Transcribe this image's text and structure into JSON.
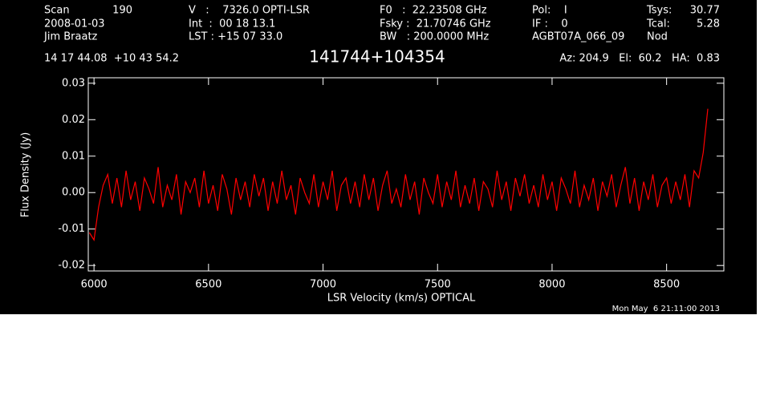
{
  "header": {
    "scan_label": "Scan",
    "scan": "190",
    "date": "2008-01-03",
    "observer": "Jim Braatz",
    "velocity": "V   :    7326.0 OPTI-LSR",
    "int": "Int  :  00 18 13.1",
    "lst": "LST : +15 07 33.0",
    "f0": "F0   :  22.23508 GHz",
    "fsky": "Fsky :  21.70746 GHz",
    "bw": "BW   : 200.0000 MHz",
    "pol": "Pol:    I",
    "if": "IF :    0",
    "project": "AGBT07A_066_09",
    "tsys_label": "Tsys:",
    "tsys": "30.77",
    "tcal_label": "Tcal:",
    "tcal": "5.28",
    "mode": "Nod",
    "coords": "14 17 44.08  +10 43 54.2",
    "pointing": "Az: 204.9   El:  60.2   HA:  0.83",
    "timestamp": "Mon May  6 21:11:00 2013"
  },
  "chart_data": {
    "type": "line",
    "title": "141744+104354",
    "x_label": "LSR Velocity (km/s) OPTICAL",
    "y_label": "Flux Density (Jy)",
    "xlim": [
      5975,
      8750
    ],
    "ylim": [
      -0.0215,
      0.0315
    ],
    "xticks": [
      6000,
      6500,
      7000,
      7500,
      8000,
      8500
    ],
    "yticks": [
      -0.02,
      -0.01,
      {
        "value": 0,
        "label": "0.00"
      },
      0.01,
      0.02,
      0.03
    ],
    "grid": false,
    "series": [
      {
        "color": "#ff0000",
        "x": [
          5980,
          6000,
          6020,
          6040,
          6060,
          6080,
          6100,
          6120,
          6140,
          6160,
          6180,
          6200,
          6220,
          6240,
          6260,
          6280,
          6300,
          6320,
          6340,
          6360,
          6380,
          6400,
          6420,
          6440,
          6460,
          6480,
          6500,
          6520,
          6540,
          6560,
          6580,
          6600,
          6620,
          6640,
          6660,
          6680,
          6700,
          6720,
          6740,
          6760,
          6780,
          6800,
          6820,
          6840,
          6860,
          6880,
          6900,
          6920,
          6940,
          6960,
          6980,
          7000,
          7020,
          7040,
          7060,
          7080,
          7100,
          7120,
          7140,
          7160,
          7180,
          7200,
          7220,
          7240,
          7260,
          7280,
          7300,
          7320,
          7340,
          7360,
          7380,
          7400,
          7420,
          7440,
          7460,
          7480,
          7500,
          7520,
          7540,
          7560,
          7580,
          7600,
          7620,
          7640,
          7660,
          7680,
          7700,
          7720,
          7740,
          7760,
          7780,
          7800,
          7820,
          7840,
          7860,
          7880,
          7900,
          7920,
          7940,
          7960,
          7980,
          8000,
          8020,
          8040,
          8060,
          8080,
          8100,
          8120,
          8140,
          8160,
          8180,
          8200,
          8220,
          8240,
          8260,
          8280,
          8300,
          8320,
          8340,
          8360,
          8380,
          8400,
          8420,
          8440,
          8460,
          8480,
          8500,
          8520,
          8540,
          8560,
          8580,
          8600,
          8620,
          8640,
          8660,
          8680
        ],
        "values": [
          -0.011,
          -0.013,
          -0.004,
          0.002,
          0.005,
          -0.003,
          0.004,
          -0.004,
          0.006,
          -0.002,
          0.003,
          -0.005,
          0.004,
          0.001,
          -0.003,
          0.007,
          -0.004,
          0.002,
          -0.002,
          0.005,
          -0.006,
          0.003,
          0.0,
          0.004,
          -0.004,
          0.006,
          -0.003,
          0.002,
          -0.005,
          0.005,
          0.001,
          -0.006,
          0.004,
          -0.002,
          0.003,
          -0.004,
          0.005,
          -0.001,
          0.004,
          -0.005,
          0.003,
          -0.003,
          0.006,
          -0.002,
          0.002,
          -0.006,
          0.004,
          0.0,
          -0.003,
          0.005,
          -0.004,
          0.003,
          -0.002,
          0.006,
          -0.005,
          0.002,
          0.004,
          -0.003,
          0.003,
          -0.004,
          0.005,
          -0.002,
          0.004,
          -0.005,
          0.002,
          0.006,
          -0.003,
          0.001,
          -0.004,
          0.005,
          -0.002,
          0.003,
          -0.006,
          0.004,
          0.0,
          -0.003,
          0.005,
          -0.004,
          0.003,
          -0.002,
          0.006,
          -0.004,
          0.002,
          -0.003,
          0.004,
          -0.005,
          0.003,
          0.001,
          -0.004,
          0.006,
          -0.002,
          0.003,
          -0.005,
          0.004,
          -0.001,
          0.005,
          -0.003,
          0.002,
          -0.004,
          0.005,
          -0.002,
          0.003,
          -0.005,
          0.004,
          0.001,
          -0.003,
          0.006,
          -0.004,
          0.002,
          -0.002,
          0.004,
          -0.005,
          0.003,
          -0.001,
          0.005,
          -0.004,
          0.002,
          0.007,
          -0.003,
          0.004,
          -0.005,
          0.003,
          -0.002,
          0.005,
          -0.004,
          0.002,
          0.004,
          -0.003,
          0.003,
          -0.002,
          0.005,
          -0.004,
          0.006,
          0.004,
          0.011,
          0.023
        ]
      }
    ]
  }
}
